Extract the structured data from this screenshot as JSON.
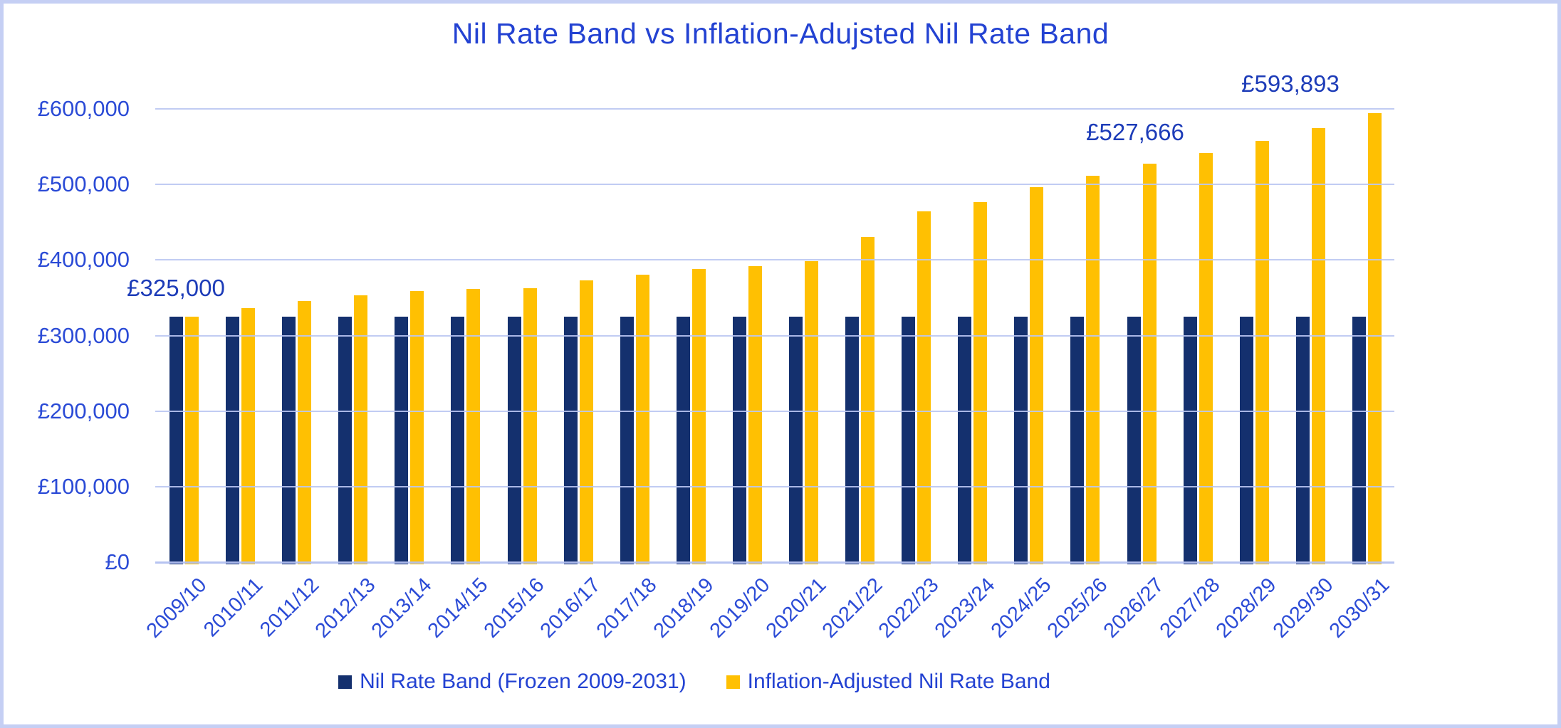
{
  "title": "Nil Rate Band vs Inflation-Adujsted Nil Rate Band",
  "chart_data": {
    "type": "bar",
    "categories": [
      "2009/10",
      "2010/11",
      "2011/12",
      "2012/13",
      "2013/14",
      "2014/15",
      "2015/16",
      "2016/17",
      "2017/18",
      "2018/19",
      "2019/20",
      "2020/21",
      "2021/22",
      "2022/23",
      "2023/24",
      "2024/25",
      "2025/26",
      "2026/27",
      "2027/28",
      "2028/29",
      "2029/30",
      "2030/31"
    ],
    "series": [
      {
        "name": "Nil Rate Band (Frozen 2009-2031)",
        "color": "#14306e",
        "values": [
          325000,
          325000,
          325000,
          325000,
          325000,
          325000,
          325000,
          325000,
          325000,
          325000,
          325000,
          325000,
          325000,
          325000,
          325000,
          325000,
          325000,
          325000,
          325000,
          325000,
          325000,
          325000
        ]
      },
      {
        "name": "Inflation-Adjusted Nil Rate Band",
        "color": "#ffc002",
        "values": [
          325000,
          336000,
          346000,
          353000,
          359000,
          362000,
          363000,
          373000,
          381000,
          388000,
          392000,
          398000,
          430000,
          464000,
          477000,
          496000,
          511000,
          527666,
          542000,
          558000,
          575000,
          593893
        ]
      }
    ],
    "xlabel": "",
    "ylabel": "",
    "ylim": [
      0,
      600000
    ],
    "ytick_step": 100000,
    "ytick_labels": [
      "£0",
      "£100,000",
      "£200,000",
      "£300,000",
      "£400,000",
      "£500,000",
      "£600,000"
    ],
    "grid": "horizontal",
    "legend_position": "bottom",
    "annotations": [
      {
        "text": "£325,000",
        "target": "2009/10",
        "value": 325000
      },
      {
        "text": "£527,666",
        "target": "2026/27",
        "value": 527666
      },
      {
        "text": "£593,893",
        "target": "2030/31",
        "value": 593893
      }
    ]
  },
  "colors": {
    "title_text": "#2342d2",
    "axis_text": "#2b4bd6",
    "annotation_text": "#1d3cb8",
    "gridline": "#c5cff4",
    "frame_border": "#c5cff4",
    "bar_frozen": "#14306e",
    "bar_adjusted": "#ffc002",
    "background": "#ffffff"
  }
}
